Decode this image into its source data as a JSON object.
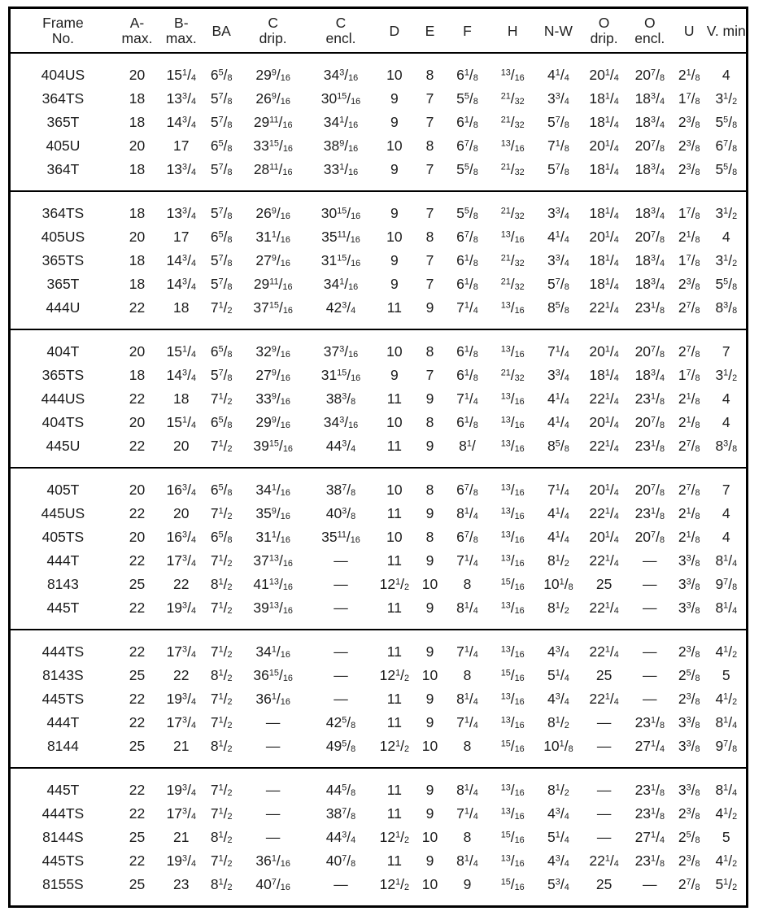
{
  "document": {
    "kind": "printed-frame-dimension-table",
    "units": "inches"
  },
  "colors": {
    "background": "#ffffff",
    "text": "#1c1c1c",
    "border": "#000000"
  },
  "table": {
    "columns": [
      {
        "id": "frame-no",
        "header_lines": [
          "Frame",
          "No."
        ]
      },
      {
        "id": "a-max",
        "header_lines": [
          "A-",
          "max."
        ]
      },
      {
        "id": "b-max",
        "header_lines": [
          "B-",
          "max."
        ]
      },
      {
        "id": "ba",
        "header_lines": [
          "BA"
        ]
      },
      {
        "id": "c-drip",
        "header_lines": [
          "C",
          "drip."
        ]
      },
      {
        "id": "c-encl",
        "header_lines": [
          "C",
          "encl."
        ]
      },
      {
        "id": "d",
        "header_lines": [
          "D"
        ]
      },
      {
        "id": "e",
        "header_lines": [
          "E"
        ]
      },
      {
        "id": "f",
        "header_lines": [
          "F"
        ]
      },
      {
        "id": "h",
        "header_lines": [
          "H"
        ]
      },
      {
        "id": "n-w",
        "header_lines": [
          "N-W"
        ]
      },
      {
        "id": "o-drip",
        "header_lines": [
          "O",
          "drip."
        ]
      },
      {
        "id": "o-encl",
        "header_lines": [
          "O",
          "encl."
        ]
      },
      {
        "id": "u",
        "header_lines": [
          "U"
        ]
      },
      {
        "id": "v-min",
        "header_lines": [
          "V. min"
        ]
      }
    ],
    "row_groups": [
      {
        "rows": [
          [
            "404US",
            "20",
            "15 1/4",
            "6 5/8",
            "29 9/16",
            "34 3/16",
            "10",
            "8",
            "6 1/8",
            "13/16",
            "4 1/4",
            "20 1/4",
            "20 7/8",
            "2 1/8",
            "4"
          ],
          [
            "364TS",
            "18",
            "13 3/4",
            "5 7/8",
            "26 9/16",
            "30 15/16",
            "9",
            "7",
            "5 5/8",
            "21/32",
            "3 3/4",
            "18 1/4",
            "18 3/4",
            "1 7/8",
            "3 1/2"
          ],
          [
            "365T",
            "18",
            "14 3/4",
            "5 7/8",
            "29 11/16",
            "34 1/16",
            "9",
            "7",
            "6 1/8",
            "21/32",
            "5 7/8",
            "18 1/4",
            "18 3/4",
            "2 3/8",
            "5 5/8"
          ],
          [
            "405U",
            "20",
            "17",
            "6 5/8",
            "33 15/16",
            "38 9/16",
            "10",
            "8",
            "6 7/8",
            "13/16",
            "7 1/8",
            "20 1/4",
            "20 7/8",
            "2 3/8",
            "6 7/8"
          ],
          [
            "364T",
            "18",
            "13 3/4",
            "5 7/8",
            "28 11/16",
            "33 1/16",
            "9",
            "7",
            "5 5/8",
            "21/32",
            "5 7/8",
            "18 1/4",
            "18 3/4",
            "2 3/8",
            "5 5/8"
          ]
        ]
      },
      {
        "rows": [
          [
            "364TS",
            "18",
            "13 3/4",
            "5 7/8",
            "26 9/16",
            "30 15/16",
            "9",
            "7",
            "5 5/8",
            "21/32",
            "3 3/4",
            "18 1/4",
            "18 3/4",
            "1 7/8",
            "3 1/2"
          ],
          [
            "405US",
            "20",
            "17",
            "6 5/8",
            "31 1/16",
            "35 11/16",
            "10",
            "8",
            "6 7/8",
            "13/16",
            "4 1/4",
            "20 1/4",
            "20 7/8",
            "2 1/8",
            "4"
          ],
          [
            "365TS",
            "18",
            "14 3/4",
            "5 7/8",
            "27 9/16",
            "31 15/16",
            "9",
            "7",
            "6 1/8",
            "21/32",
            "3 3/4",
            "18 1/4",
            "18 3/4",
            "1 7/8",
            "3 1/2"
          ],
          [
            "365T",
            "18",
            "14 3/4",
            "5 7/8",
            "29 11/16",
            "34 1/16",
            "9",
            "7",
            "6 1/8",
            "21/32",
            "5 7/8",
            "18 1/4",
            "18 3/4",
            "2 3/8",
            "5 5/8"
          ],
          [
            "444U",
            "22",
            "18",
            "7 1/2",
            "37 15/16",
            "42 3/4",
            "11",
            "9",
            "7 1/4",
            "13/16",
            "8 5/8",
            "22 1/4",
            "23 1/8",
            "2 7/8",
            "8 3/8"
          ]
        ]
      },
      {
        "rows": [
          [
            "404T",
            "20",
            "15 1/4",
            "6 5/8",
            "32 9/16",
            "37 3/16",
            "10",
            "8",
            "6 1/8",
            "13/16",
            "7 1/4",
            "20 1/4",
            "20 7/8",
            "2 7/8",
            "7"
          ],
          [
            "365TS",
            "18",
            "14 3/4",
            "5 7/8",
            "27 9/16",
            "31 15/16",
            "9",
            "7",
            "6 1/8",
            "21/32",
            "3 3/4",
            "18 1/4",
            "18 3/4",
            "1 7/8",
            "3 1/2"
          ],
          [
            "444US",
            "22",
            "18",
            "7 1/2",
            "33 9/16",
            "38 3/8",
            "11",
            "9",
            "7 1/4",
            "13/16",
            "4 1/4",
            "22 1/4",
            "23 1/8",
            "2 1/8",
            "4"
          ],
          [
            "404TS",
            "20",
            "15 1/4",
            "6 5/8",
            "29 9/16",
            "34 3/16",
            "10",
            "8",
            "6 1/8",
            "13/16",
            "4 1/4",
            "20 1/4",
            "20 7/8",
            "2 1/8",
            "4"
          ],
          [
            "445U",
            "22",
            "20",
            "7 1/2",
            "39 15/16",
            "44 3/4",
            "11",
            "9",
            "8 1/",
            "13/16",
            "8 5/8",
            "22 1/4",
            "23 1/8",
            "2 7/8",
            "8 3/8"
          ]
        ]
      },
      {
        "rows": [
          [
            "405T",
            "20",
            "16 3/4",
            "6 5/8",
            "34 1/16",
            "38 7/8",
            "10",
            "8",
            "6 7/8",
            "13/16",
            "7 1/4",
            "20 1/4",
            "20 7/8",
            "2 7/8",
            "7"
          ],
          [
            "445US",
            "22",
            "20",
            "7 1/2",
            "35 9/16",
            "40 3/8",
            "11",
            "9",
            "8 1/4",
            "13/16",
            "4 1/4",
            "22 1/4",
            "23 1/8",
            "2 1/8",
            "4"
          ],
          [
            "405TS",
            "20",
            "16 3/4",
            "6 5/8",
            "31 1/16",
            "35 11/16",
            "10",
            "8",
            "6 7/8",
            "13/16",
            "4 1/4",
            "20 1/4",
            "20 7/8",
            "2 1/8",
            "4"
          ],
          [
            "444T",
            "22",
            "17 3/4",
            "7 1/2",
            "37 13/16",
            "—",
            "11",
            "9",
            "7 1/4",
            "13/16",
            "8 1/2",
            "22 1/4",
            "—",
            "3 3/8",
            "8 1/4"
          ],
          [
            "8143",
            "25",
            "22",
            "8 1/2",
            "41 13/16",
            "—",
            "12 1/2",
            "10",
            "8",
            "15/16",
            "10 1/8",
            "25",
            "—",
            "3 3/8",
            "9 7/8"
          ],
          [
            "445T",
            "22",
            "19 3/4",
            "7 1/2",
            "39 13/16",
            "—",
            "11",
            "9",
            "8 1/4",
            "13/16",
            "8 1/2",
            "22 1/4",
            "—",
            "3 3/8",
            "8 1/4"
          ]
        ]
      },
      {
        "rows": [
          [
            "444TS",
            "22",
            "17 3/4",
            "7 1/2",
            "34 1/16",
            "—",
            "11",
            "9",
            "7 1/4",
            "13/16",
            "4 3/4",
            "22 1/4",
            "—",
            "2 3/8",
            "4 1/2"
          ],
          [
            "8143S",
            "25",
            "22",
            "8 1/2",
            "36 15/16",
            "—",
            "12 1/2",
            "10",
            "8",
            "15/16",
            "5 1/4",
            "25",
            "—",
            "2 5/8",
            "5"
          ],
          [
            "445TS",
            "22",
            "19 3/4",
            "7 1/2",
            "36 1/16",
            "—",
            "11",
            "9",
            "8 1/4",
            "13/16",
            "4 3/4",
            "22 1/4",
            "—",
            "2 3/8",
            "4 1/2"
          ],
          [
            "444T",
            "22",
            "17 3/4",
            "7 1/2",
            "—",
            "42 5/8",
            "11",
            "9",
            "7 1/4",
            "13/16",
            "8 1/2",
            "—",
            "23 1/8",
            "3 3/8",
            "8 1/4"
          ],
          [
            "8144",
            "25",
            "21",
            "8 1/2",
            "—",
            "49 5/8",
            "12 1/2",
            "10",
            "8",
            "15/16",
            "10 1/8",
            "—",
            "27 1/4",
            "3 3/8",
            "9 7/8"
          ]
        ]
      },
      {
        "rows": [
          [
            "445T",
            "22",
            "19 3/4",
            "7 1/2",
            "—",
            "44 5/8",
            "11",
            "9",
            "8 1/4",
            "13/16",
            "8 1/2",
            "—",
            "23 1/8",
            "3 3/8",
            "8 1/4"
          ],
          [
            "444TS",
            "22",
            "17 3/4",
            "7 1/2",
            "—",
            "38 7/8",
            "11",
            "9",
            "7 1/4",
            "13/16",
            "4 3/4",
            "—",
            "23 1/8",
            "2 3/8",
            "4 1/2"
          ],
          [
            "8144S",
            "25",
            "21",
            "8 1/2",
            "—",
            "44 3/4",
            "12 1/2",
            "10",
            "8",
            "15/16",
            "5 1/4",
            "—",
            "27 1/4",
            "2 5/8",
            "5"
          ],
          [
            "445TS",
            "22",
            "19 3/4",
            "7 1/2",
            "36 1/16",
            "40 7/8",
            "11",
            "9",
            "8 1/4",
            "13/16",
            "4 3/4",
            "22 1/4",
            "23 1/8",
            "2 3/8",
            "4 1/2"
          ],
          [
            "8155S",
            "25",
            "23",
            "8 1/2",
            "40 7/16",
            "—",
            "12 1/2",
            "10",
            "9",
            "15/16",
            "5 3/4",
            "25",
            "—",
            "2 7/8",
            "5 1/2"
          ]
        ]
      }
    ]
  }
}
